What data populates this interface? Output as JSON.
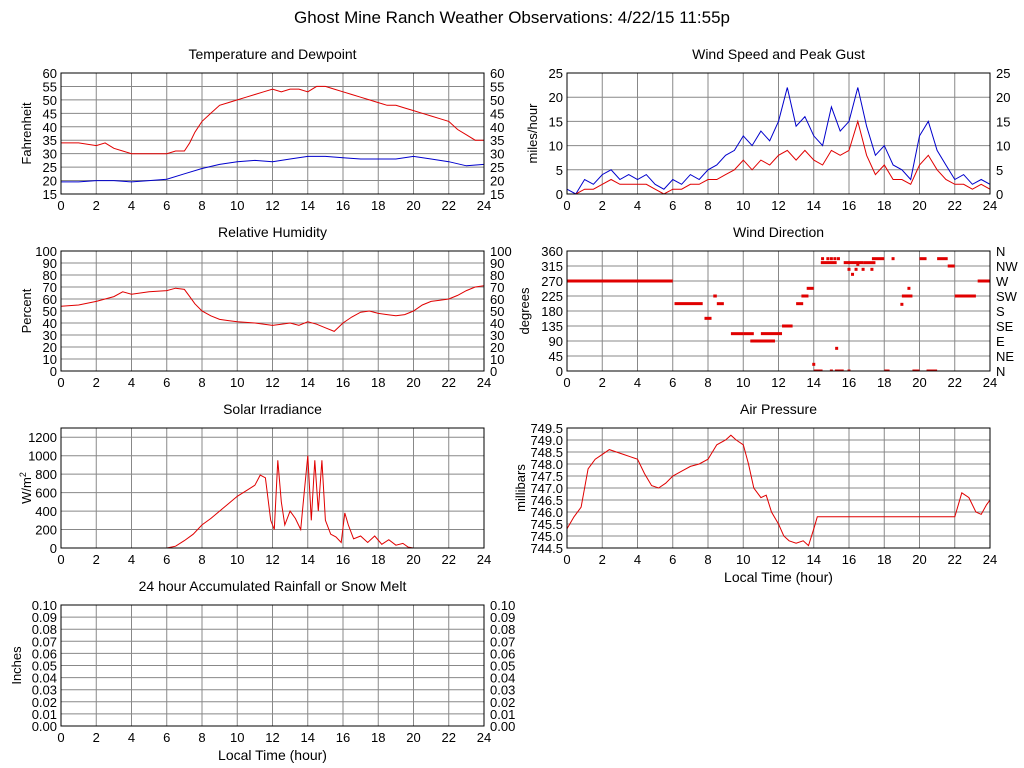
{
  "page_title": "Ghost Mine Ranch Weather Observations: 4/22/15 11:55p",
  "colors": {
    "red": "#e00000",
    "blue": "#0000cc",
    "grid": "#888888",
    "frame": "#000000"
  },
  "chart_data": [
    {
      "id": "temp",
      "type": "line",
      "title": "Temperature and Dewpoint",
      "xlabel": "",
      "ylabel": "Fahrenheit",
      "xlim": [
        0,
        24
      ],
      "ylim": [
        15,
        60
      ],
      "xticks": [
        0,
        2,
        4,
        6,
        8,
        10,
        12,
        14,
        16,
        18,
        20,
        22,
        24
      ],
      "yticks": [
        15,
        20,
        25,
        30,
        35,
        40,
        45,
        50,
        55,
        60
      ],
      "right_axis": true,
      "series": [
        {
          "color": "red",
          "x": [
            0,
            1,
            2,
            2.5,
            3,
            3.5,
            4,
            5,
            6,
            6.5,
            7,
            7.3,
            7.6,
            8,
            8.5,
            9,
            9.5,
            10,
            10.5,
            11,
            11.5,
            12,
            12.5,
            13,
            13.5,
            14,
            14.5,
            15,
            15.5,
            16,
            16.5,
            17,
            17.5,
            18,
            18.5,
            19,
            19.5,
            20,
            20.5,
            21,
            21.5,
            22,
            22.5,
            23,
            23.5,
            24
          ],
          "y": [
            34,
            34,
            33,
            34,
            32,
            31,
            30,
            30,
            30,
            31,
            31,
            34,
            38,
            42,
            45,
            48,
            49,
            50,
            51,
            52,
            53,
            54,
            53,
            54,
            54,
            53,
            55,
            55,
            54,
            53,
            52,
            51,
            50,
            49,
            48,
            48,
            47,
            46,
            45,
            44,
            43,
            42,
            39,
            37,
            35,
            35
          ]
        },
        {
          "color": "blue",
          "x": [
            0,
            1,
            2,
            3,
            4,
            5,
            6,
            7,
            8,
            9,
            10,
            11,
            12,
            13,
            14,
            15,
            16,
            17,
            18,
            19,
            20,
            21,
            22,
            23,
            24
          ],
          "y": [
            19.5,
            19.5,
            20,
            20,
            19.5,
            20,
            20.5,
            22.5,
            24.5,
            26,
            27,
            27.5,
            27,
            28,
            29,
            29,
            28.5,
            28,
            28,
            28,
            29,
            28,
            27,
            25.5,
            26
          ]
        }
      ]
    },
    {
      "id": "wind",
      "type": "line",
      "title": "Wind Speed and Peak Gust",
      "xlabel": "",
      "ylabel": "miles/hour",
      "xlim": [
        0,
        24
      ],
      "ylim": [
        0,
        25
      ],
      "xticks": [
        0,
        2,
        4,
        6,
        8,
        10,
        12,
        14,
        16,
        18,
        20,
        22,
        24
      ],
      "yticks": [
        0,
        5,
        10,
        15,
        20,
        25
      ],
      "right_axis": true,
      "series": [
        {
          "color": "blue",
          "x": [
            0,
            0.5,
            1,
            1.5,
            2,
            2.5,
            3,
            3.5,
            4,
            4.5,
            5,
            5.5,
            6,
            6.5,
            7,
            7.5,
            8,
            8.5,
            9,
            9.5,
            10,
            10.5,
            11,
            11.5,
            12,
            12.5,
            13,
            13.5,
            14,
            14.5,
            15,
            15.5,
            16,
            16.5,
            17,
            17.5,
            18,
            18.5,
            19,
            19.5,
            20,
            20.5,
            21,
            21.5,
            22,
            22.5,
            23,
            23.5,
            24
          ],
          "y": [
            1,
            0,
            3,
            2,
            4,
            5,
            3,
            4,
            3,
            4,
            2,
            1,
            3,
            2,
            4,
            3,
            5,
            6,
            8,
            9,
            12,
            10,
            13,
            11,
            15,
            22,
            14,
            16,
            12,
            10,
            18,
            13,
            15,
            22,
            14,
            8,
            10,
            6,
            5,
            3,
            12,
            15,
            9,
            6,
            3,
            4,
            2,
            3,
            2
          ]
        },
        {
          "color": "red",
          "x": [
            0,
            0.5,
            1,
            1.5,
            2,
            2.5,
            3,
            3.5,
            4,
            4.5,
            5,
            5.5,
            6,
            6.5,
            7,
            7.5,
            8,
            8.5,
            9,
            9.5,
            10,
            10.5,
            11,
            11.5,
            12,
            12.5,
            13,
            13.5,
            14,
            14.5,
            15,
            15.5,
            16,
            16.5,
            17,
            17.5,
            18,
            18.5,
            19,
            19.5,
            20,
            20.5,
            21,
            21.5,
            22,
            22.5,
            23,
            23.5,
            24
          ],
          "y": [
            0,
            0,
            1,
            1,
            2,
            3,
            2,
            2,
            2,
            2,
            1,
            0,
            1,
            1,
            2,
            2,
            3,
            3,
            4,
            5,
            7,
            5,
            7,
            6,
            8,
            9,
            7,
            9,
            7,
            6,
            9,
            8,
            9,
            15,
            8,
            4,
            6,
            3,
            3,
            2,
            6,
            8,
            5,
            3,
            2,
            2,
            1,
            2,
            1
          ]
        }
      ]
    },
    {
      "id": "rh",
      "type": "line",
      "title": "Relative Humidity",
      "xlabel": "",
      "ylabel": "Percent",
      "xlim": [
        0,
        24
      ],
      "ylim": [
        0,
        100
      ],
      "xticks": [
        0,
        2,
        4,
        6,
        8,
        10,
        12,
        14,
        16,
        18,
        20,
        22,
        24
      ],
      "yticks": [
        0,
        10,
        20,
        30,
        40,
        50,
        60,
        70,
        80,
        90,
        100
      ],
      "right_axis": true,
      "series": [
        {
          "color": "red",
          "x": [
            0,
            1,
            2,
            3,
            3.5,
            4,
            5,
            6,
            6.5,
            7,
            7.3,
            7.6,
            8,
            8.5,
            9,
            9.5,
            10,
            11,
            12,
            12.5,
            13,
            13.5,
            14,
            14.5,
            15,
            15.5,
            16,
            16.5,
            17,
            17.5,
            18,
            18.5,
            19,
            19.5,
            20,
            20.5,
            21,
            21.5,
            22,
            22.5,
            23,
            23.5,
            24
          ],
          "y": [
            54,
            55,
            58,
            62,
            66,
            64,
            66,
            67,
            69,
            68,
            62,
            56,
            50,
            46,
            43,
            42,
            41,
            40,
            38,
            39,
            40,
            38,
            41,
            39,
            36,
            33,
            40,
            45,
            49,
            50,
            48,
            47,
            46,
            47,
            50,
            55,
            58,
            59,
            60,
            63,
            67,
            70,
            71
          ]
        }
      ]
    },
    {
      "id": "winddir",
      "type": "scatter",
      "title": "Wind Direction",
      "xlabel": "",
      "ylabel": "degrees",
      "xlim": [
        0,
        24
      ],
      "ylim": [
        0,
        360
      ],
      "xticks": [
        0,
        2,
        4,
        6,
        8,
        10,
        12,
        14,
        16,
        18,
        20,
        22,
        24
      ],
      "yticks": [
        0,
        45,
        90,
        135,
        180,
        225,
        270,
        315,
        360
      ],
      "right_labels": [
        "N",
        "NE",
        "E",
        "SE",
        "S",
        "SW",
        "W",
        "NW",
        "N"
      ],
      "segments": [
        [
          0,
          6,
          270
        ],
        [
          6.1,
          7.7,
          202
        ],
        [
          7.8,
          8.2,
          158
        ],
        [
          8.3,
          8.5,
          225
        ],
        [
          8.5,
          8.9,
          202
        ],
        [
          9.3,
          10,
          112
        ],
        [
          10,
          10.6,
          112
        ],
        [
          10.4,
          11.8,
          90
        ],
        [
          11,
          12.2,
          112
        ],
        [
          12.2,
          12.8,
          135
        ],
        [
          13,
          13.4,
          202
        ],
        [
          13.3,
          13.7,
          225
        ],
        [
          13.6,
          14,
          248
        ],
        [
          14,
          14.5,
          0
        ],
        [
          14.4,
          15.3,
          325
        ],
        [
          15.2,
          15.7,
          0
        ],
        [
          15.7,
          16.8,
          325
        ],
        [
          16.8,
          17.5,
          325
        ],
        [
          17.3,
          18,
          337
        ],
        [
          18,
          18.3,
          0
        ],
        [
          19,
          19.6,
          225
        ],
        [
          19.6,
          20,
          0
        ],
        [
          20,
          20.4,
          337
        ],
        [
          20.4,
          21,
          0
        ],
        [
          21,
          21.6,
          337
        ],
        [
          21.6,
          22,
          315
        ],
        [
          22,
          23.2,
          225
        ],
        [
          23.3,
          24,
          270
        ]
      ],
      "points": [
        [
          14,
          20
        ],
        [
          15.3,
          68
        ],
        [
          14.5,
          337
        ],
        [
          14.8,
          337
        ],
        [
          15,
          337
        ],
        [
          15.2,
          337
        ],
        [
          15.4,
          337
        ],
        [
          16,
          305
        ],
        [
          16.2,
          290
        ],
        [
          16.4,
          305
        ],
        [
          16.5,
          320
        ],
        [
          16.8,
          305
        ],
        [
          17.3,
          305
        ],
        [
          18.5,
          337
        ],
        [
          19,
          200
        ],
        [
          19.4,
          248
        ],
        [
          14.2,
          0
        ],
        [
          15,
          0
        ],
        [
          16,
          0
        ]
      ]
    },
    {
      "id": "solar",
      "type": "line",
      "title": "Solar Irradiance",
      "xlabel": "",
      "ylabel": "W/m",
      "ylabel_sup": "2",
      "xlim": [
        0,
        24
      ],
      "ylim": [
        0,
        1300
      ],
      "xticks": [
        0,
        2,
        4,
        6,
        8,
        10,
        12,
        14,
        16,
        18,
        20,
        22,
        24
      ],
      "yticks": [
        0,
        200,
        400,
        600,
        800,
        1000,
        1200
      ],
      "right_axis": false,
      "series": [
        {
          "color": "red",
          "x": [
            0,
            6,
            6.5,
            7,
            7.5,
            8,
            8.5,
            9,
            9.5,
            10,
            10.5,
            11,
            11.3,
            11.6,
            11.9,
            12.1,
            12.3,
            12.5,
            12.7,
            13,
            13.3,
            13.6,
            13.8,
            14,
            14.2,
            14.4,
            14.6,
            14.8,
            15,
            15.3,
            15.6,
            15.9,
            16.1,
            16.3,
            16.6,
            17,
            17.4,
            17.8,
            18.2,
            18.6,
            19,
            19.4,
            19.7,
            20,
            24
          ],
          "y": [
            0,
            0,
            20,
            80,
            150,
            250,
            320,
            400,
            480,
            560,
            620,
            680,
            790,
            760,
            300,
            200,
            950,
            500,
            250,
            400,
            320,
            200,
            600,
            1000,
            300,
            950,
            400,
            950,
            300,
            150,
            120,
            60,
            380,
            250,
            100,
            130,
            60,
            130,
            40,
            90,
            30,
            50,
            10,
            0,
            0
          ]
        }
      ]
    },
    {
      "id": "pressure",
      "type": "line",
      "title": "Air Pressure",
      "xlabel": "Local Time (hour)",
      "ylabel": "millibars",
      "xlim": [
        0,
        24
      ],
      "ylim": [
        744.5,
        749.5
      ],
      "xticks": [
        0,
        2,
        4,
        6,
        8,
        10,
        12,
        14,
        16,
        18,
        20,
        22,
        24
      ],
      "yticks": [
        744.5,
        745.0,
        745.5,
        746.0,
        746.5,
        747.0,
        747.5,
        748.0,
        748.5,
        749.0,
        749.5
      ],
      "ytick_labels": [
        "744.5",
        "745.0",
        "745.5",
        "746.0",
        "746.5",
        "747.0",
        "747.5",
        "748.0",
        "748.5",
        "749.0",
        "749.5"
      ],
      "right_axis": false,
      "series": [
        {
          "color": "red",
          "x": [
            0,
            0.4,
            0.8,
            1.2,
            1.6,
            2,
            2.4,
            2.8,
            3.2,
            3.6,
            4,
            4.4,
            4.8,
            5.2,
            5.6,
            6,
            6.5,
            7,
            7.5,
            8,
            8.5,
            9,
            9.3,
            9.6,
            10,
            10.3,
            10.6,
            11,
            11.3,
            11.6,
            12,
            12.3,
            12.6,
            13,
            13.4,
            13.7,
            14,
            14.2,
            22,
            22.4,
            22.8,
            23.2,
            23.5,
            23.8,
            24
          ],
          "y": [
            745.3,
            745.8,
            746.2,
            747.8,
            748.2,
            748.4,
            748.6,
            748.5,
            748.4,
            748.3,
            748.2,
            747.6,
            747.1,
            747.0,
            747.2,
            747.5,
            747.7,
            747.9,
            748.0,
            748.2,
            748.8,
            749.0,
            749.2,
            749.0,
            748.8,
            748.0,
            747.0,
            746.6,
            746.7,
            746.0,
            745.5,
            745.0,
            744.8,
            744.7,
            744.8,
            744.6,
            745.3,
            745.8,
            745.8,
            746.8,
            746.6,
            746.0,
            745.9,
            746.3,
            746.5
          ]
        }
      ]
    },
    {
      "id": "rain",
      "type": "line",
      "title": "24 hour Accumulated Rainfall or Snow Melt",
      "xlabel": "Local Time (hour)",
      "ylabel": "Inches",
      "xlim": [
        0,
        24
      ],
      "ylim": [
        0,
        0.1
      ],
      "xticks": [
        0,
        2,
        4,
        6,
        8,
        10,
        12,
        14,
        16,
        18,
        20,
        22,
        24
      ],
      "yticks": [
        0,
        0.01,
        0.02,
        0.03,
        0.04,
        0.05,
        0.06,
        0.07,
        0.08,
        0.09,
        0.1
      ],
      "ytick_labels": [
        "0.00",
        "0.01",
        "0.02",
        "0.03",
        "0.04",
        "0.05",
        "0.06",
        "0.07",
        "0.08",
        "0.09",
        "0.10"
      ],
      "right_axis": true,
      "series": [
        {
          "color": "red",
          "x": [
            0,
            24
          ],
          "y": [
            0,
            0
          ]
        }
      ]
    }
  ]
}
